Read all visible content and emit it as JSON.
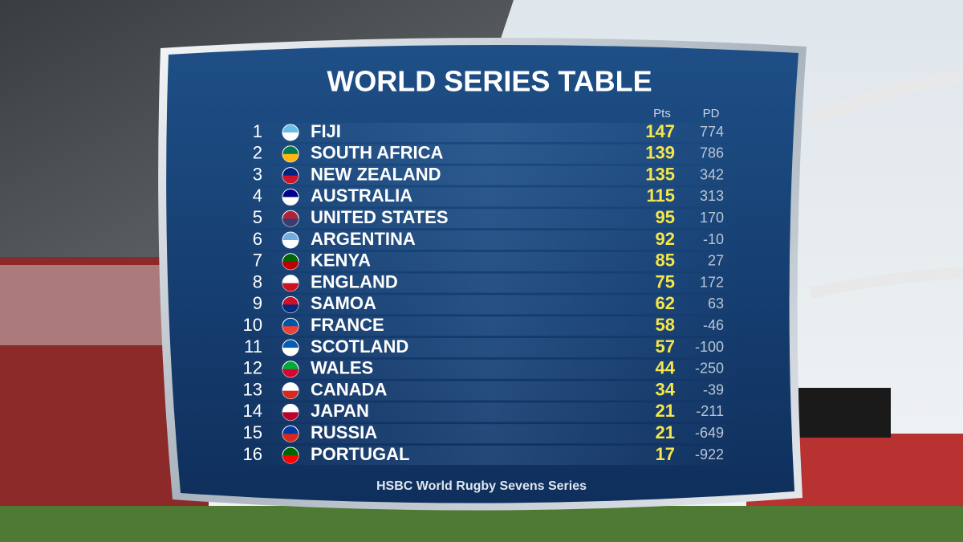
{
  "title": "WORLD SERIES TABLE",
  "table": {
    "headers": {
      "points": "Pts",
      "points_difference": "PD"
    },
    "rows": [
      {
        "rank": 1,
        "team": "FIJI",
        "points": 147,
        "points_difference": 774
      },
      {
        "rank": 2,
        "team": "SOUTH AFRICA",
        "points": 139,
        "points_difference": 786
      },
      {
        "rank": 3,
        "team": "NEW ZEALAND",
        "points": 135,
        "points_difference": 342
      },
      {
        "rank": 4,
        "team": "AUSTRALIA",
        "points": 115,
        "points_difference": 313
      },
      {
        "rank": 5,
        "team": "UNITED STATES",
        "points": 95,
        "points_difference": 170
      },
      {
        "rank": 6,
        "team": "ARGENTINA",
        "points": 92,
        "points_difference": -10
      },
      {
        "rank": 7,
        "team": "KENYA",
        "points": 85,
        "points_difference": 27
      },
      {
        "rank": 8,
        "team": "ENGLAND",
        "points": 75,
        "points_difference": 172
      },
      {
        "rank": 9,
        "team": "SAMOA",
        "points": 62,
        "points_difference": 63
      },
      {
        "rank": 10,
        "team": "FRANCE",
        "points": 58,
        "points_difference": -46
      },
      {
        "rank": 11,
        "team": "SCOTLAND",
        "points": 57,
        "points_difference": -100
      },
      {
        "rank": 12,
        "team": "WALES",
        "points": 44,
        "points_difference": -250
      },
      {
        "rank": 13,
        "team": "CANADA",
        "points": 34,
        "points_difference": -39
      },
      {
        "rank": 14,
        "team": "JAPAN",
        "points": 21,
        "points_difference": -211
      },
      {
        "rank": 15,
        "team": "RUSSIA",
        "points": 21,
        "points_difference": -649
      },
      {
        "rank": 16,
        "team": "PORTUGAL",
        "points": 17,
        "points_difference": -922
      }
    ]
  },
  "footer": "HSBC World Rugby Sevens Series"
}
